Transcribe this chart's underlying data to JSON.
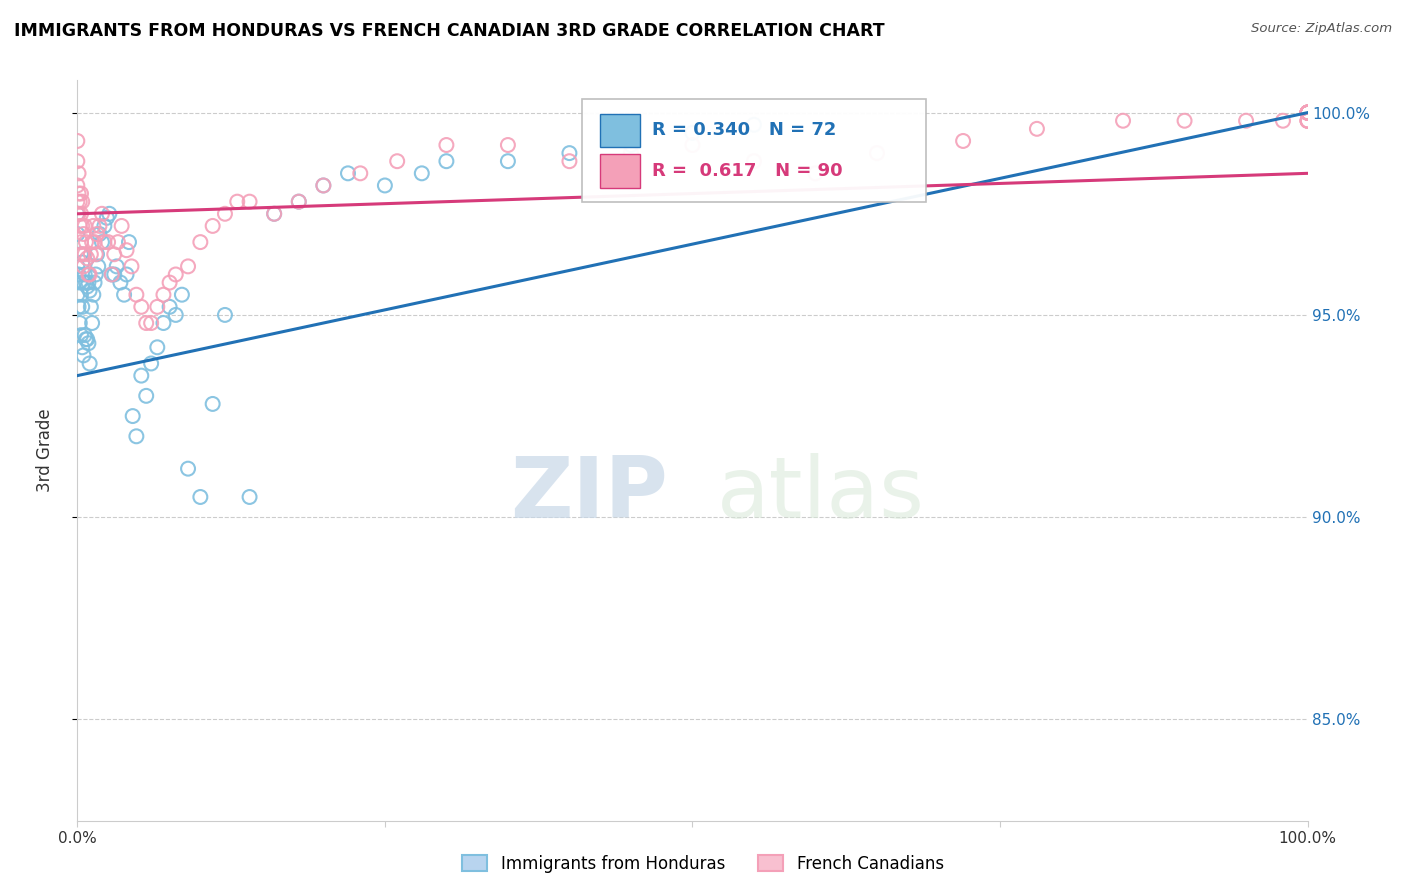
{
  "title": "IMMIGRANTS FROM HONDURAS VS FRENCH CANADIAN 3RD GRADE CORRELATION CHART",
  "source": "Source: ZipAtlas.com",
  "ylabel": "3rd Grade",
  "xlim": [
    0.0,
    1.0
  ],
  "ylim": [
    0.825,
    1.008
  ],
  "legend_blue_label": "Immigrants from Honduras",
  "legend_pink_label": "French Canadians",
  "r_blue": 0.34,
  "n_blue": 72,
  "r_pink": 0.617,
  "n_pink": 90,
  "blue_color": "#7fbfdf",
  "pink_color": "#f4a0b8",
  "blue_line_color": "#2171b5",
  "pink_line_color": "#d63a7a",
  "watermark_zip": "ZIP",
  "watermark_atlas": "atlas",
  "blue_points_x": [
    0.0,
    0.0,
    0.0,
    0.0,
    0.001,
    0.001,
    0.002,
    0.002,
    0.003,
    0.003,
    0.003,
    0.004,
    0.004,
    0.004,
    0.005,
    0.005,
    0.006,
    0.006,
    0.007,
    0.007,
    0.008,
    0.008,
    0.009,
    0.009,
    0.01,
    0.01,
    0.011,
    0.012,
    0.013,
    0.014,
    0.015,
    0.016,
    0.017,
    0.018,
    0.02,
    0.022,
    0.024,
    0.026,
    0.028,
    0.03,
    0.032,
    0.035,
    0.038,
    0.04,
    0.042,
    0.045,
    0.048,
    0.052,
    0.056,
    0.06,
    0.065,
    0.07,
    0.075,
    0.08,
    0.085,
    0.09,
    0.1,
    0.11,
    0.12,
    0.14,
    0.16,
    0.18,
    0.2,
    0.22,
    0.25,
    0.28,
    0.3,
    0.35,
    0.4,
    0.45,
    0.5,
    0.55
  ],
  "blue_points_y": [
    0.955,
    0.962,
    0.97,
    0.975,
    0.952,
    0.96,
    0.948,
    0.958,
    0.945,
    0.955,
    0.965,
    0.942,
    0.952,
    0.963,
    0.94,
    0.958,
    0.945,
    0.96,
    0.944,
    0.958,
    0.944,
    0.957,
    0.943,
    0.958,
    0.938,
    0.956,
    0.952,
    0.948,
    0.955,
    0.958,
    0.96,
    0.965,
    0.962,
    0.97,
    0.968,
    0.972,
    0.974,
    0.975,
    0.96,
    0.96,
    0.962,
    0.958,
    0.955,
    0.96,
    0.968,
    0.925,
    0.92,
    0.935,
    0.93,
    0.938,
    0.942,
    0.948,
    0.952,
    0.95,
    0.955,
    0.912,
    0.905,
    0.928,
    0.95,
    0.905,
    0.975,
    0.978,
    0.982,
    0.985,
    0.982,
    0.985,
    0.988,
    0.988,
    0.99,
    0.992,
    0.995,
    0.997
  ],
  "pink_points_x": [
    0.0,
    0.0,
    0.0,
    0.0,
    0.0,
    0.001,
    0.001,
    0.001,
    0.002,
    0.002,
    0.003,
    0.003,
    0.003,
    0.004,
    0.004,
    0.004,
    0.005,
    0.005,
    0.006,
    0.006,
    0.007,
    0.008,
    0.009,
    0.01,
    0.011,
    0.012,
    0.013,
    0.014,
    0.015,
    0.016,
    0.018,
    0.02,
    0.022,
    0.025,
    0.028,
    0.03,
    0.033,
    0.036,
    0.04,
    0.044,
    0.048,
    0.052,
    0.056,
    0.06,
    0.065,
    0.07,
    0.075,
    0.08,
    0.09,
    0.1,
    0.11,
    0.12,
    0.13,
    0.14,
    0.16,
    0.18,
    0.2,
    0.23,
    0.26,
    0.3,
    0.35,
    0.4,
    0.45,
    0.5,
    0.55,
    0.6,
    0.65,
    0.72,
    0.78,
    0.85,
    0.9,
    0.95,
    0.98,
    1.0,
    1.0,
    1.0,
    1.0,
    1.0,
    1.0,
    1.0,
    1.0,
    1.0,
    1.0,
    1.0,
    1.0,
    1.0,
    1.0,
    1.0,
    1.0,
    1.0
  ],
  "pink_points_y": [
    0.975,
    0.978,
    0.982,
    0.988,
    0.993,
    0.975,
    0.98,
    0.985,
    0.972,
    0.978,
    0.968,
    0.975,
    0.98,
    0.965,
    0.972,
    0.978,
    0.962,
    0.97,
    0.965,
    0.972,
    0.968,
    0.964,
    0.96,
    0.96,
    0.965,
    0.968,
    0.972,
    0.968,
    0.965,
    0.97,
    0.972,
    0.975,
    0.968,
    0.968,
    0.96,
    0.965,
    0.968,
    0.972,
    0.966,
    0.962,
    0.955,
    0.952,
    0.948,
    0.948,
    0.952,
    0.955,
    0.958,
    0.96,
    0.962,
    0.968,
    0.972,
    0.975,
    0.978,
    0.978,
    0.975,
    0.978,
    0.982,
    0.985,
    0.988,
    0.992,
    0.992,
    0.988,
    0.99,
    0.992,
    0.988,
    0.985,
    0.99,
    0.993,
    0.996,
    0.998,
    0.998,
    0.998,
    0.998,
    0.998,
    0.998,
    0.998,
    0.998,
    1.0,
    1.0,
    1.0,
    1.0,
    1.0,
    1.0,
    1.0,
    1.0,
    1.0,
    1.0,
    1.0,
    1.0,
    1.0
  ]
}
